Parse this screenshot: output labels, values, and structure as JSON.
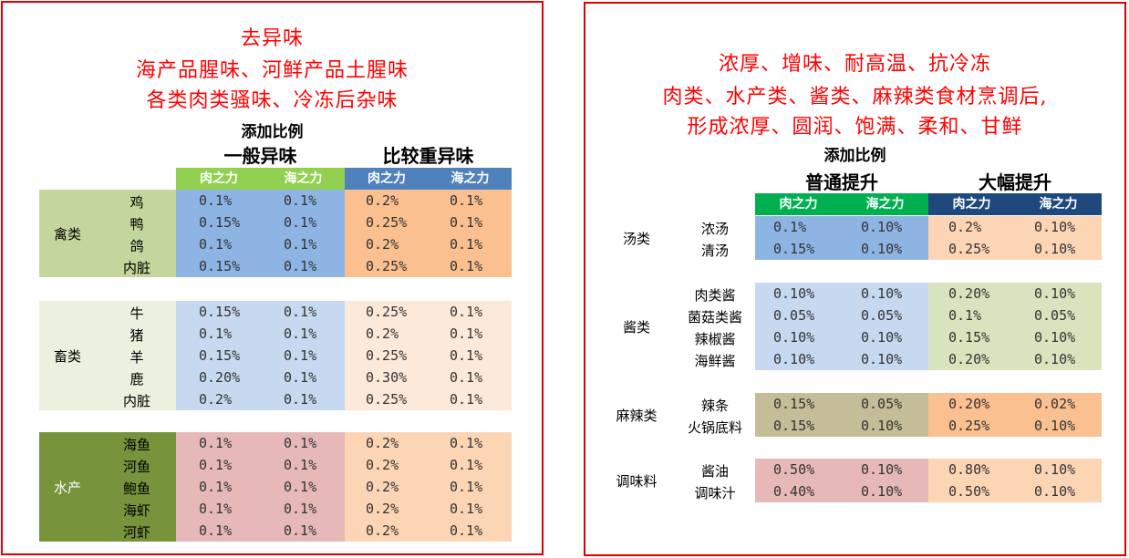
{
  "left": {
    "titles": [
      "去异味",
      "海产品腥味、河鲜产品土腥味",
      "各类肉类骚味、冷冻后杂味"
    ],
    "ratio_label": "添加比例",
    "group_a": "一般异味",
    "group_b": "比较重异味",
    "col_headers": [
      "肉之力",
      "海之力",
      "肉之力",
      "海之力"
    ],
    "sections": [
      {
        "category": "禽类",
        "rows": [
          {
            "name": "鸡",
            "v": [
              "0.1%",
              "0.1%",
              "0.2%",
              "0.1%"
            ]
          },
          {
            "name": "鸭",
            "v": [
              "0.15%",
              "0.1%",
              "0.25%",
              "0.1%"
            ]
          },
          {
            "name": "鸽",
            "v": [
              "0.1%",
              "0.1%",
              "0.2%",
              "0.1%"
            ]
          },
          {
            "name": "内脏",
            "v": [
              "0.15%",
              "0.1%",
              "0.25%",
              "0.1%"
            ]
          }
        ]
      },
      {
        "category": "畜类",
        "rows": [
          {
            "name": "牛",
            "v": [
              "0.15%",
              "0.1%",
              "0.25%",
              "0.1%"
            ]
          },
          {
            "name": "猪",
            "v": [
              "0.1%",
              "0.1%",
              "0.2%",
              "0.1%"
            ]
          },
          {
            "name": "羊",
            "v": [
              "0.15%",
              "0.1%",
              "0.25%",
              "0.1%"
            ]
          },
          {
            "name": "鹿",
            "v": [
              "0.20%",
              "0.1%",
              "0.30%",
              "0.1%"
            ]
          },
          {
            "name": "内脏",
            "v": [
              "0.2%",
              "0.1%",
              "0.25%",
              "0.1%"
            ]
          }
        ]
      },
      {
        "category": "水产",
        "rows": [
          {
            "name": "海鱼",
            "v": [
              "0.1%",
              "0.1%",
              "0.2%",
              "0.1%"
            ]
          },
          {
            "name": "河鱼",
            "v": [
              "0.1%",
              "0.1%",
              "0.2%",
              "0.1%"
            ]
          },
          {
            "name": "鲍鱼",
            "v": [
              "0.1%",
              "0.1%",
              "0.2%",
              "0.1%"
            ]
          },
          {
            "name": "海虾",
            "v": [
              "0.1%",
              "0.1%",
              "0.2%",
              "0.1%"
            ]
          },
          {
            "name": "河虾",
            "v": [
              "0.1%",
              "0.1%",
              "0.2%",
              "0.1%"
            ]
          }
        ]
      }
    ]
  },
  "right": {
    "titles": [
      "浓厚、增味、耐高温、抗冷冻",
      "肉类、水产类、酱类、麻辣类食材烹调后,",
      "形成浓厚、圆润、饱满、柔和、甘鲜"
    ],
    "ratio_label": "添加比例",
    "group_a": "普通提升",
    "group_b": "大幅提升",
    "col_headers": [
      "肉之力",
      "海之力",
      "肉之力",
      "海之力"
    ],
    "sections": [
      {
        "category": "汤类",
        "rows": [
          {
            "name": "浓汤",
            "v": [
              "0.1%",
              "0.10%",
              "0.2%",
              "0.10%"
            ]
          },
          {
            "name": "清汤",
            "v": [
              "0.15%",
              "0.10%",
              "0.25%",
              "0.10%"
            ]
          }
        ]
      },
      {
        "category": "酱类",
        "rows": [
          {
            "name": "肉类酱",
            "v": [
              "0.10%",
              "0.10%",
              "0.20%",
              "0.10%"
            ]
          },
          {
            "name": "菌菇类酱",
            "v": [
              "0.05%",
              "0.05%",
              "0.1%",
              "0.05%"
            ]
          },
          {
            "name": "辣椒酱",
            "v": [
              "0.10%",
              "0.10%",
              "0.15%",
              "0.10%"
            ]
          },
          {
            "name": "海鲜酱",
            "v": [
              "0.10%",
              "0.10%",
              "0.20%",
              "0.10%"
            ]
          }
        ]
      },
      {
        "category": "麻辣类",
        "rows": [
          {
            "name": "辣条",
            "v": [
              "0.15%",
              "0.05%",
              "0.20%",
              "0.02%"
            ]
          },
          {
            "name": "火锅底料",
            "v": [
              "0.15%",
              "0.10%",
              "0.25%",
              "0.10%"
            ]
          }
        ]
      },
      {
        "category": "调味料",
        "rows": [
          {
            "name": "酱油",
            "v": [
              "0.50%",
              "0.10%",
              "0.80%",
              "0.10%"
            ]
          },
          {
            "name": "调味汁",
            "v": [
              "0.40%",
              "0.10%",
              "0.50%",
              "0.10%"
            ]
          }
        ]
      }
    ]
  }
}
